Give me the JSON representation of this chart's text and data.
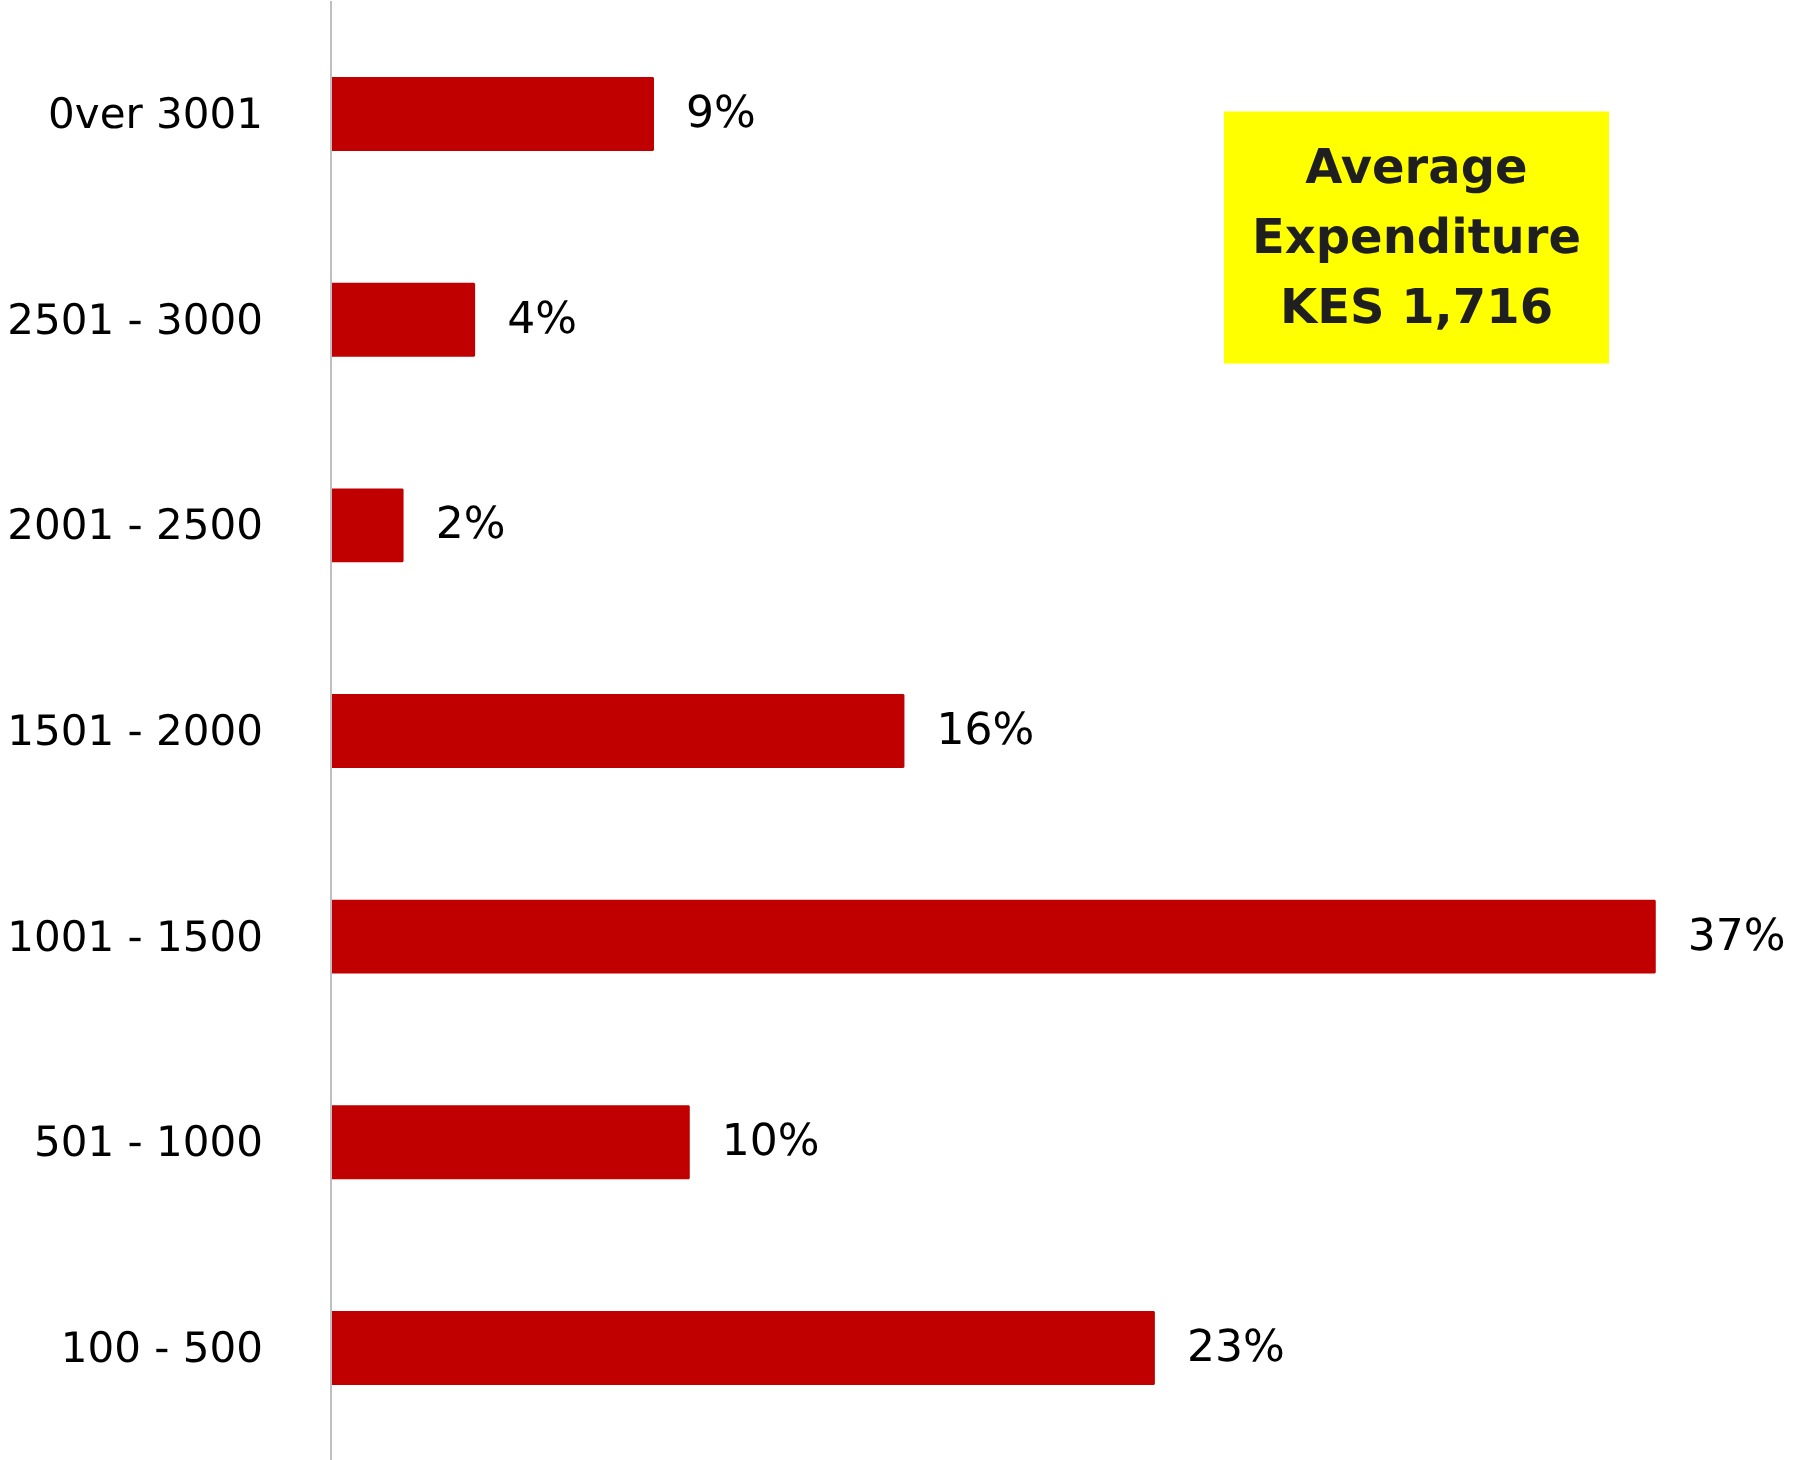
{
  "chart_data": {
    "type": "bar",
    "orientation": "horizontal",
    "categories": [
      "0ver 3001",
      "2501 - 3000",
      "2001 - 2500",
      "1501 - 2000",
      "1001 - 1500",
      "501 - 1000",
      "100 - 500"
    ],
    "values": [
      9,
      4,
      2,
      16,
      37,
      10,
      23
    ],
    "color": "#c00000",
    "value_labels": [
      "9%",
      "4%",
      "2%",
      "16%",
      "37%",
      "10%",
      "23%"
    ],
    "annotations": [
      "Average\nExpenditure\nKES 1,716"
    ],
    "tick_labels": "y",
    "grid": false
  }
}
